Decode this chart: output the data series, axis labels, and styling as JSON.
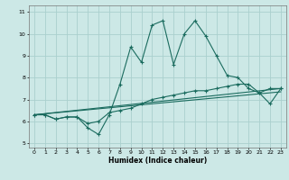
{
  "xlabel": "Humidex (Indice chaleur)",
  "background_color": "#cce8e6",
  "grid_color": "#aad0ce",
  "line_color": "#1a6b5e",
  "xlim": [
    -0.5,
    23.5
  ],
  "ylim": [
    4.8,
    11.3
  ],
  "yticks": [
    5,
    6,
    7,
    8,
    9,
    10,
    11
  ],
  "xticks": [
    0,
    1,
    2,
    3,
    4,
    5,
    6,
    7,
    8,
    9,
    10,
    11,
    12,
    13,
    14,
    15,
    16,
    17,
    18,
    19,
    20,
    21,
    22,
    23
  ],
  "series1_x": [
    0,
    1,
    2,
    3,
    4,
    5,
    6,
    7,
    8,
    9,
    10,
    11,
    12,
    13,
    14,
    15,
    16,
    17,
    18,
    19,
    20,
    21,
    22,
    23
  ],
  "series1_y": [
    6.3,
    6.3,
    6.1,
    6.2,
    6.2,
    5.7,
    5.4,
    6.3,
    7.7,
    9.4,
    8.7,
    10.4,
    10.6,
    8.6,
    10.0,
    10.6,
    9.9,
    9.0,
    8.1,
    8.0,
    7.5,
    7.3,
    6.8,
    7.5
  ],
  "series2_x": [
    0,
    1,
    2,
    3,
    4,
    5,
    6,
    7,
    8,
    9,
    10,
    11,
    12,
    13,
    14,
    15,
    16,
    17,
    18,
    19,
    20,
    21,
    22,
    23
  ],
  "series2_y": [
    6.3,
    6.3,
    6.1,
    6.2,
    6.2,
    5.9,
    6.0,
    6.4,
    6.5,
    6.6,
    6.8,
    7.0,
    7.1,
    7.2,
    7.3,
    7.4,
    7.4,
    7.5,
    7.6,
    7.7,
    7.7,
    7.3,
    7.5,
    7.5
  ],
  "series3_x": [
    0,
    23
  ],
  "series3_y": [
    6.3,
    7.5
  ],
  "series4_x": [
    0,
    23
  ],
  "series4_y": [
    6.3,
    7.35
  ]
}
